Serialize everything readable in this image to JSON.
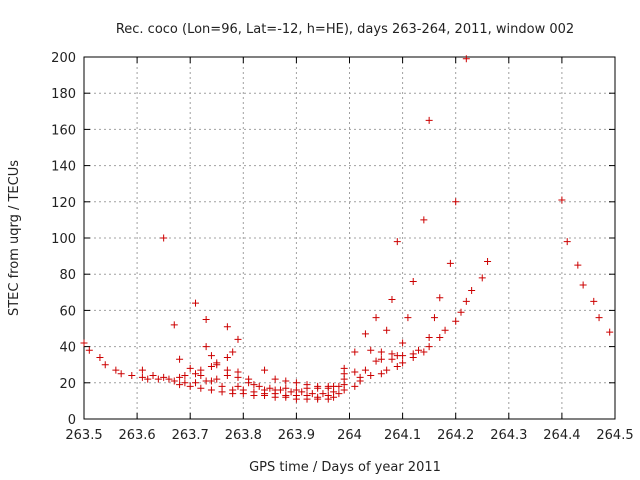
{
  "chart_data": {
    "type": "scatter",
    "title": "Rec. coco (Lon=96, Lat=-12, h=HE), days 263-264, 2011, window 002",
    "xlabel": "GPS time / Days of year 2011",
    "ylabel": "STEC from uqrg / TECUs",
    "xlim": [
      263.5,
      264.5
    ],
    "ylim": [
      0,
      200
    ],
    "xticks": [
      263.5,
      263.6,
      263.7,
      263.8,
      263.9,
      264.0,
      264.1,
      264.2,
      264.3,
      264.4,
      264.5
    ],
    "xtick_labels": [
      "263.5",
      "263.6",
      "263.7",
      "263.8",
      "263.9",
      "264",
      "264.1",
      "264.2",
      "264.3",
      "264.4",
      "264.5"
    ],
    "yticks": [
      0,
      20,
      40,
      60,
      80,
      100,
      120,
      140,
      160,
      180,
      200
    ],
    "ytick_labels": [
      "0",
      "20",
      "40",
      "60",
      "80",
      "100",
      "120",
      "140",
      "160",
      "180",
      "200"
    ],
    "grid": true,
    "marker": "plus",
    "color": "#cc0000",
    "points": [
      [
        263.5,
        42
      ],
      [
        263.51,
        38
      ],
      [
        263.53,
        34
      ],
      [
        263.54,
        30
      ],
      [
        263.56,
        27
      ],
      [
        263.57,
        25
      ],
      [
        263.59,
        24
      ],
      [
        263.61,
        23
      ],
      [
        263.62,
        22
      ],
      [
        263.64,
        22
      ],
      [
        263.66,
        22
      ],
      [
        263.68,
        23
      ],
      [
        263.69,
        24
      ],
      [
        263.71,
        25
      ],
      [
        263.72,
        27
      ],
      [
        263.74,
        29
      ],
      [
        263.75,
        31
      ],
      [
        263.77,
        34
      ],
      [
        263.78,
        37
      ],
      [
        263.79,
        44
      ],
      [
        263.77,
        51
      ],
      [
        263.73,
        55
      ],
      [
        263.71,
        64
      ],
      [
        263.67,
        52
      ],
      [
        263.65,
        100
      ],
      [
        263.61,
        27
      ],
      [
        263.63,
        24
      ],
      [
        263.65,
        23
      ],
      [
        263.67,
        21
      ],
      [
        263.69,
        20
      ],
      [
        263.71,
        20
      ],
      [
        263.73,
        21
      ],
      [
        263.75,
        22
      ],
      [
        263.77,
        24
      ],
      [
        263.79,
        26
      ],
      [
        263.81,
        22
      ],
      [
        263.79,
        18
      ],
      [
        263.68,
        19
      ],
      [
        263.7,
        18
      ],
      [
        263.72,
        17
      ],
      [
        263.74,
        16
      ],
      [
        263.76,
        15
      ],
      [
        263.78,
        14
      ],
      [
        263.8,
        14
      ],
      [
        263.82,
        13
      ],
      [
        263.84,
        13
      ],
      [
        263.86,
        12
      ],
      [
        263.88,
        12
      ],
      [
        263.9,
        11
      ],
      [
        263.92,
        11
      ],
      [
        263.94,
        11
      ],
      [
        263.96,
        11
      ],
      [
        263.97,
        12
      ],
      [
        263.68,
        33
      ],
      [
        263.7,
        28
      ],
      [
        263.72,
        24
      ],
      [
        263.74,
        21
      ],
      [
        263.76,
        18
      ],
      [
        263.78,
        16
      ],
      [
        263.8,
        16
      ],
      [
        263.82,
        15
      ],
      [
        263.84,
        14
      ],
      [
        263.86,
        14
      ],
      [
        263.88,
        13
      ],
      [
        263.9,
        13
      ],
      [
        263.92,
        13
      ],
      [
        263.94,
        12
      ],
      [
        263.96,
        13
      ],
      [
        263.98,
        14
      ],
      [
        263.73,
        40
      ],
      [
        263.74,
        35
      ],
      [
        263.75,
        30
      ],
      [
        263.77,
        27
      ],
      [
        263.79,
        23
      ],
      [
        263.81,
        20
      ],
      [
        263.83,
        18
      ],
      [
        263.85,
        17
      ],
      [
        263.87,
        16
      ],
      [
        263.89,
        15
      ],
      [
        263.91,
        15
      ],
      [
        263.93,
        14
      ],
      [
        263.95,
        14
      ],
      [
        263.97,
        15
      ],
      [
        263.99,
        16
      ],
      [
        263.84,
        27
      ],
      [
        263.86,
        22
      ],
      [
        263.88,
        21
      ],
      [
        263.9,
        20
      ],
      [
        263.92,
        19
      ],
      [
        263.94,
        18
      ],
      [
        263.96,
        18
      ],
      [
        263.97,
        18
      ],
      [
        263.99,
        19
      ],
      [
        263.99,
        22
      ],
      [
        263.99,
        25
      ],
      [
        263.99,
        28
      ],
      [
        263.82,
        19
      ],
      [
        263.84,
        16
      ],
      [
        263.86,
        16
      ],
      [
        263.88,
        17
      ],
      [
        263.9,
        16
      ],
      [
        263.92,
        17
      ],
      [
        263.94,
        17
      ],
      [
        263.96,
        17
      ],
      [
        263.98,
        18
      ],
      [
        264.01,
        18
      ],
      [
        264.02,
        21
      ],
      [
        264.04,
        24
      ],
      [
        264.06,
        25
      ],
      [
        264.07,
        27
      ],
      [
        264.09,
        29
      ],
      [
        264.1,
        31
      ],
      [
        264.12,
        34
      ],
      [
        264.14,
        37
      ],
      [
        264.15,
        40
      ],
      [
        264.17,
        45
      ],
      [
        264.18,
        49
      ],
      [
        264.2,
        54
      ],
      [
        264.21,
        59
      ],
      [
        264.22,
        65
      ],
      [
        264.23,
        71
      ],
      [
        264.25,
        78
      ],
      [
        264.26,
        87
      ],
      [
        264.01,
        26
      ],
      [
        264.02,
        23
      ],
      [
        264.03,
        27
      ],
      [
        264.05,
        32
      ],
      [
        264.06,
        33
      ],
      [
        264.08,
        36
      ],
      [
        264.09,
        35
      ],
      [
        264.1,
        35
      ],
      [
        264.12,
        36
      ],
      [
        264.13,
        38
      ],
      [
        264.15,
        45
      ],
      [
        264.16,
        56
      ],
      [
        264.17,
        67
      ],
      [
        264.19,
        86
      ],
      [
        264.2,
        120
      ],
      [
        264.22,
        199
      ],
      [
        264.01,
        37
      ],
      [
        264.03,
        47
      ],
      [
        264.05,
        56
      ],
      [
        264.07,
        49
      ],
      [
        264.08,
        66
      ],
      [
        264.09,
        98
      ],
      [
        264.11,
        56
      ],
      [
        264.12,
        76
      ],
      [
        264.14,
        110
      ],
      [
        264.15,
        165
      ],
      [
        264.04,
        38
      ],
      [
        264.06,
        37
      ],
      [
        264.08,
        33
      ],
      [
        264.1,
        42
      ],
      [
        264.4,
        121
      ],
      [
        264.41,
        98
      ],
      [
        264.43,
        85
      ],
      [
        264.44,
        74
      ],
      [
        264.46,
        65
      ],
      [
        264.47,
        56
      ],
      [
        264.49,
        48
      ]
    ]
  }
}
